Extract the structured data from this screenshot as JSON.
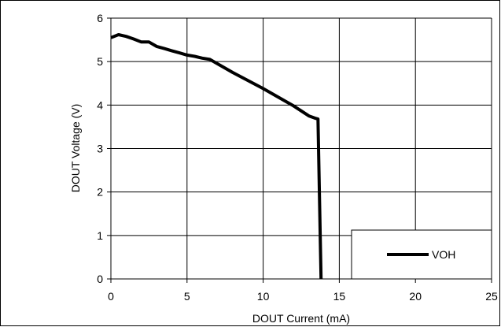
{
  "chart_data": {
    "type": "line",
    "title": "",
    "xlabel": "DOUT Current (mA)",
    "ylabel": "DOUT Voltage (V)",
    "xlim": [
      0,
      25
    ],
    "ylim": [
      0,
      6
    ],
    "xticks": [
      0,
      5,
      10,
      15,
      20,
      25
    ],
    "yticks": [
      0,
      1,
      2,
      3,
      4,
      5,
      6
    ],
    "grid": true,
    "legend_position": "bottom-right",
    "series": [
      {
        "name": "VOH",
        "color": "#000000",
        "x": [
          0,
          0.5,
          1.0,
          1.5,
          2.0,
          2.5,
          3.0,
          3.5,
          4.0,
          4.5,
          5.0,
          5.5,
          6.0,
          6.5,
          8.0,
          10.0,
          12.0,
          13.0,
          13.4,
          13.6,
          13.8
        ],
        "y": [
          5.55,
          5.62,
          5.58,
          5.52,
          5.45,
          5.45,
          5.35,
          5.3,
          5.25,
          5.2,
          5.15,
          5.12,
          5.08,
          5.05,
          4.75,
          4.38,
          3.98,
          3.75,
          3.7,
          3.68,
          0
        ]
      }
    ]
  }
}
